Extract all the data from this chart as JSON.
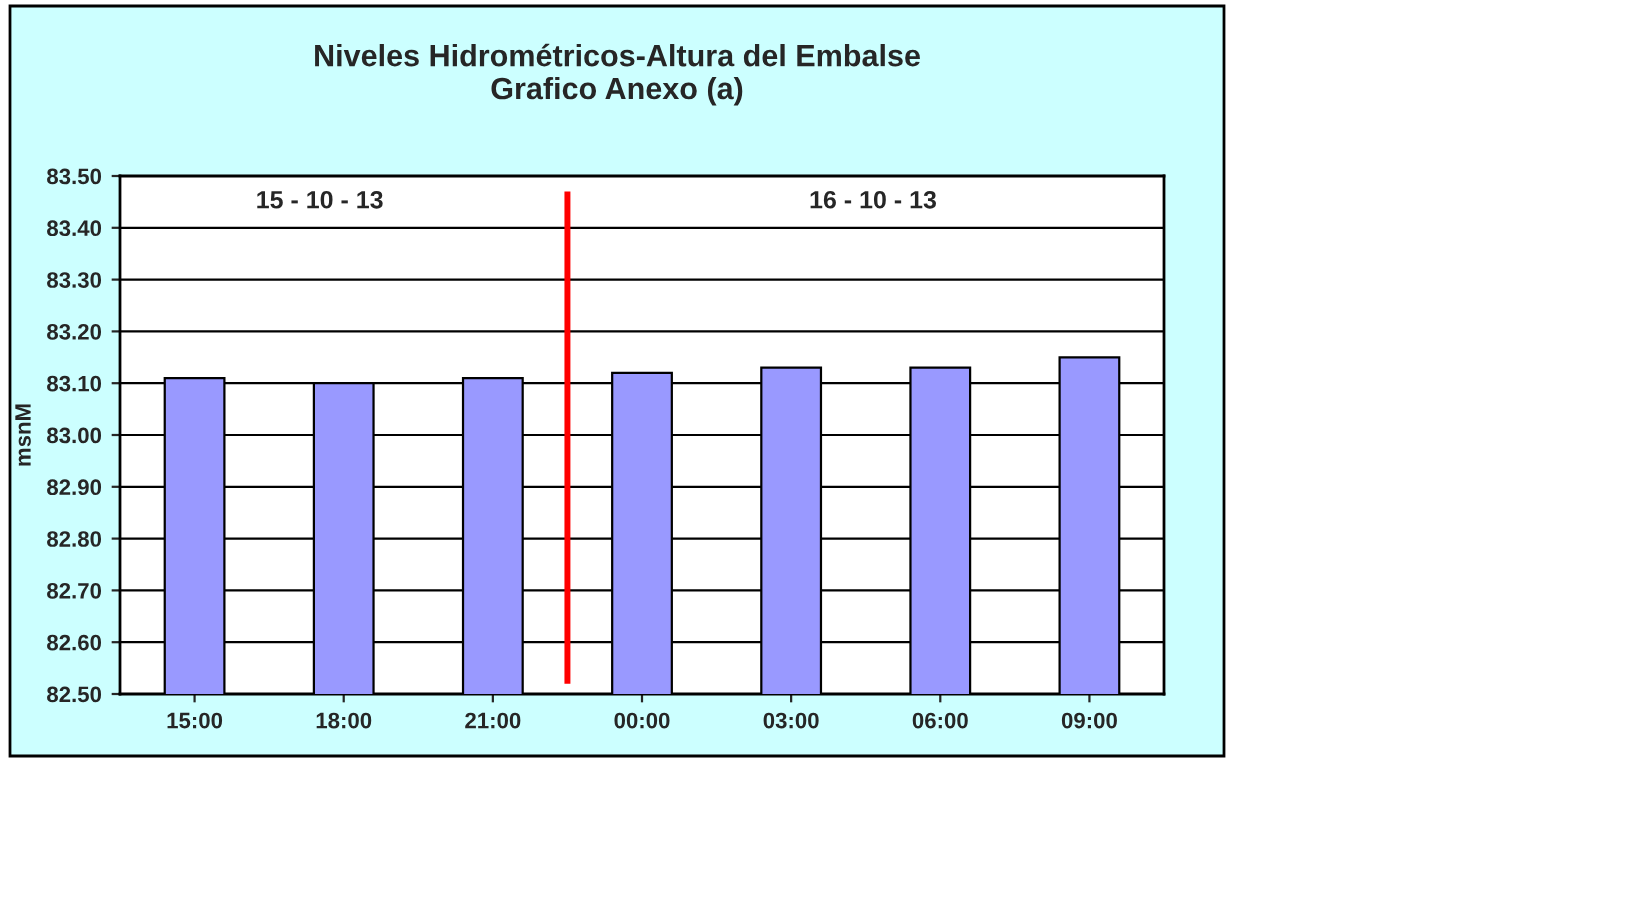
{
  "chart_data": {
    "type": "bar",
    "title": "Niveles Hidrométricos-Altura del Embalse\nGrafico Anexo (a)",
    "ylabel": "msnM",
    "categories": [
      "15:00",
      "18:00",
      "21:00",
      "00:00",
      "03:00",
      "06:00",
      "09:00"
    ],
    "values": [
      83.11,
      83.1,
      83.11,
      83.12,
      83.13,
      83.13,
      83.15
    ],
    "color": "#9999ff",
    "ylim": [
      82.5,
      83.5
    ],
    "yticks": [
      {
        "value": 82.5,
        "label": "82.50"
      },
      {
        "value": 82.6,
        "label": "82.60"
      },
      {
        "value": 82.7,
        "label": "82.70"
      },
      {
        "value": 82.8,
        "label": "82.80"
      },
      {
        "value": 82.9,
        "label": "82.90"
      },
      {
        "value": 83.0,
        "label": "83.00"
      },
      {
        "value": 83.1,
        "label": "83.10"
      },
      {
        "value": 83.2,
        "label": "83.20"
      },
      {
        "value": 83.3,
        "label": "83.30"
      },
      {
        "value": 83.4,
        "label": "83.40"
      },
      {
        "value": 83.5,
        "label": "83.50"
      }
    ],
    "grid": "y",
    "annotations": [
      "15 - 10 - 13",
      "16 - 10 - 13"
    ]
  }
}
